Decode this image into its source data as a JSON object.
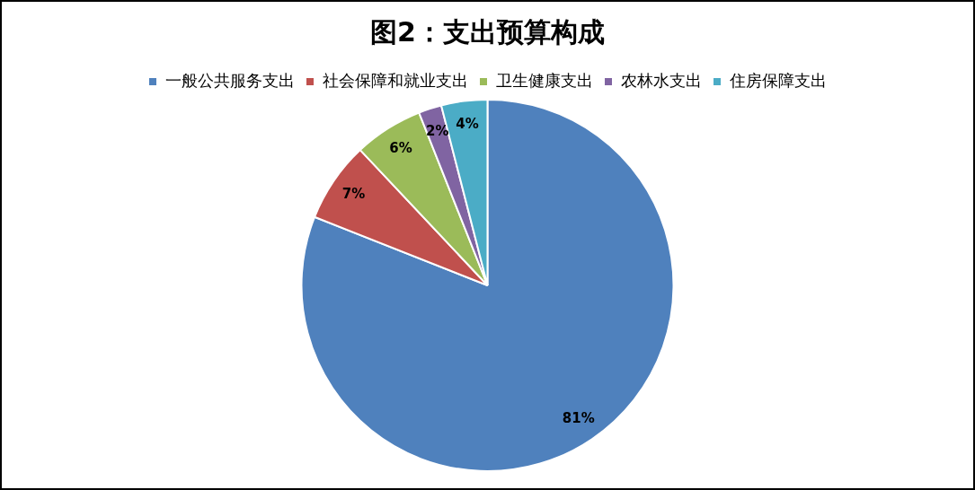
{
  "chart_data": {
    "type": "pie",
    "title": "图2：支出预算构成",
    "categories": [
      "一般公共服务支出",
      "社会保障和就业支出",
      "卫生健康支出",
      "农林水支出",
      "住房保障支出"
    ],
    "values": [
      81,
      7,
      6,
      2,
      4
    ],
    "colors": [
      "#4f81bd",
      "#c0504d",
      "#9bbb59",
      "#8064a2",
      "#4bacc6"
    ],
    "value_labels": [
      "81%",
      "7%",
      "6%",
      "2%",
      "4%"
    ],
    "legend": "top"
  }
}
